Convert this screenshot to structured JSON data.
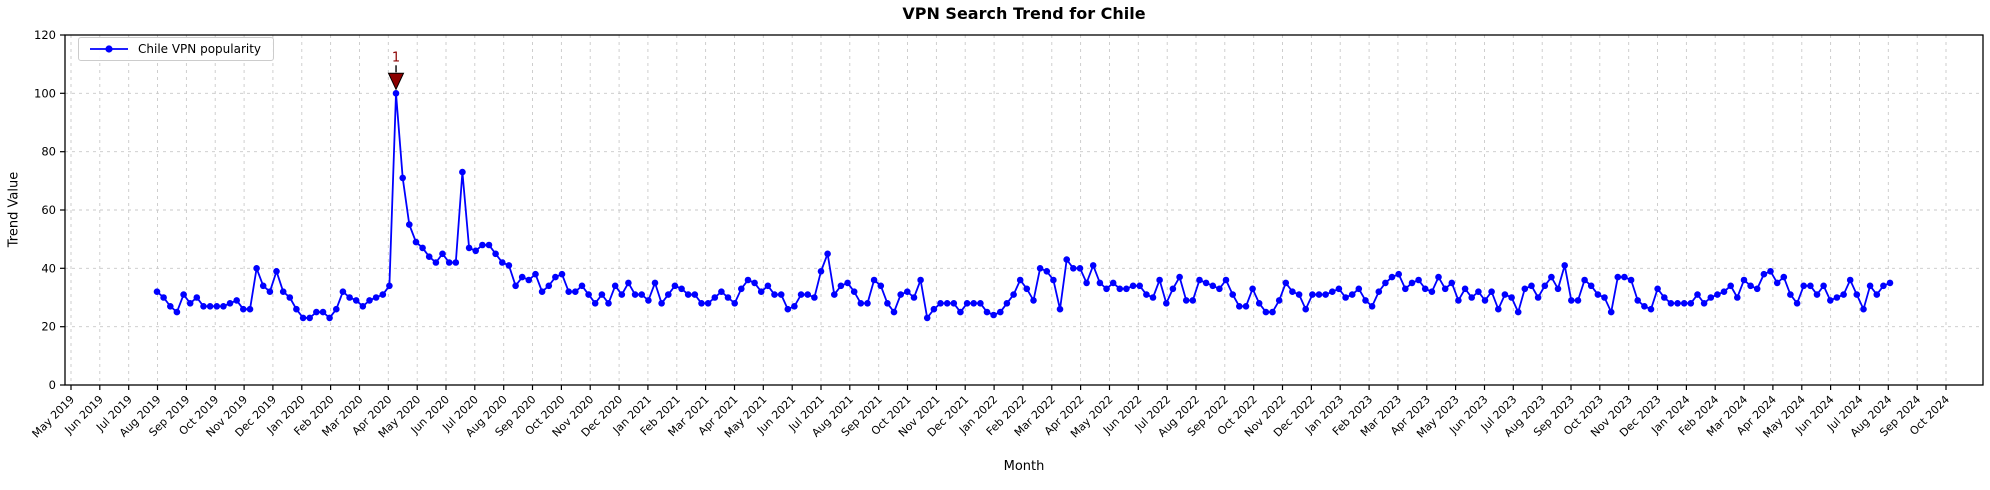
{
  "chart_data": {
    "type": "line",
    "title": "VPN Search Trend for Chile",
    "xlabel": "Month",
    "ylabel": "Trend Value",
    "ylim": [
      0,
      120
    ],
    "y_ticks": [
      0,
      20,
      40,
      60,
      80,
      100,
      120
    ],
    "grid": "dashed",
    "legend_position": "upper left",
    "line_color": "#0000ff",
    "x_ticklabels": [
      "May 2019",
      "Jun 2019",
      "Jul 2019",
      "Aug 2019",
      "Sep 2019",
      "Oct 2019",
      "Nov 2019",
      "Dec 2019",
      "Jan 2020",
      "Feb 2020",
      "Mar 2020",
      "Apr 2020",
      "May 2020",
      "Jun 2020",
      "Jul 2020",
      "Aug 2020",
      "Sep 2020",
      "Oct 2020",
      "Nov 2020",
      "Dec 2020",
      "Jan 2021",
      "Feb 2021",
      "Mar 2021",
      "Apr 2021",
      "May 2021",
      "Jun 2021",
      "Jul 2021",
      "Aug 2021",
      "Sep 2021",
      "Oct 2021",
      "Nov 2021",
      "Dec 2021",
      "Jan 2022",
      "Feb 2022",
      "Mar 2022",
      "Apr 2022",
      "May 2022",
      "Jun 2022",
      "Jul 2022",
      "Aug 2022",
      "Sep 2022",
      "Oct 2022",
      "Nov 2022",
      "Dec 2022",
      "Jan 2023",
      "Feb 2023",
      "Mar 2023",
      "Apr 2023",
      "May 2023",
      "Jun 2023",
      "Jul 2023",
      "Aug 2023",
      "Sep 2023",
      "Oct 2023",
      "Nov 2023",
      "Dec 2023",
      "Jan 2024",
      "Feb 2024",
      "Mar 2024",
      "Apr 2024",
      "May 2024",
      "Jun 2024",
      "Jul 2024",
      "Aug 2024",
      "Sep 2024",
      "Oct 2024"
    ],
    "series": [
      {
        "name": "Chile VPN popularity",
        "cadence": "weekly",
        "first_point_near": "Aug 2019",
        "last_point_near": "Aug 2024",
        "values": [
          32,
          30,
          27,
          25,
          31,
          28,
          30,
          27,
          27,
          27,
          27,
          28,
          29,
          26,
          26,
          40,
          34,
          32,
          39,
          32,
          30,
          26,
          23,
          23,
          25,
          25,
          23,
          26,
          32,
          30,
          29,
          27,
          29,
          30,
          31,
          34,
          100,
          71,
          55,
          49,
          47,
          44,
          42,
          45,
          42,
          42,
          73,
          47,
          46,
          48,
          48,
          45,
          42,
          41,
          34,
          37,
          36,
          38,
          32,
          34,
          37,
          38,
          32,
          32,
          34,
          31,
          28,
          31,
          28,
          34,
          31,
          35,
          31,
          31,
          29,
          35,
          28,
          31,
          34,
          33,
          31,
          31,
          28,
          28,
          30,
          32,
          30,
          28,
          33,
          36,
          35,
          32,
          34,
          31,
          31,
          26,
          27,
          31,
          31,
          30,
          39,
          45,
          31,
          34,
          35,
          32,
          28,
          28,
          36,
          34,
          28,
          25,
          31,
          32,
          30,
          36,
          23,
          26,
          28,
          28,
          28,
          25,
          28,
          28,
          28,
          25,
          24,
          25,
          28,
          31,
          36,
          33,
          29,
          40,
          39,
          36,
          26,
          43,
          40,
          40,
          35,
          41,
          35,
          33,
          35,
          33,
          33,
          34,
          34,
          31,
          30,
          36,
          28,
          33,
          37,
          29,
          29,
          36,
          35,
          34,
          33,
          36,
          31,
          27,
          27,
          33,
          28,
          25,
          25,
          29,
          35,
          32,
          31,
          26,
          31,
          31,
          31,
          32,
          33,
          30,
          31,
          33,
          29,
          27,
          32,
          35,
          37,
          38,
          33,
          35,
          36,
          33,
          32,
          37,
          33,
          35,
          29,
          33,
          30,
          32,
          29,
          32,
          26,
          31,
          30,
          25,
          33,
          34,
          30,
          34,
          37,
          33,
          41,
          29,
          29,
          36,
          34,
          31,
          30,
          25,
          37,
          37,
          36,
          29,
          27,
          26,
          33,
          30,
          28,
          28,
          28,
          28,
          31,
          28,
          30,
          31,
          32,
          34,
          30,
          36,
          34,
          33,
          38,
          39,
          35,
          37,
          31,
          28,
          34,
          34,
          31,
          34,
          29,
          30,
          31,
          36,
          31,
          26,
          34,
          31,
          34,
          35
        ]
      }
    ],
    "annotations": [
      {
        "text": "1",
        "marker": "triangle-down",
        "color": "#8b0000",
        "at": "series maximum (value 100, Apr 2020)"
      }
    ],
    "colors": {
      "grid": "#c9c9c9",
      "spine": "#000000",
      "tick_label": "#000000"
    }
  }
}
